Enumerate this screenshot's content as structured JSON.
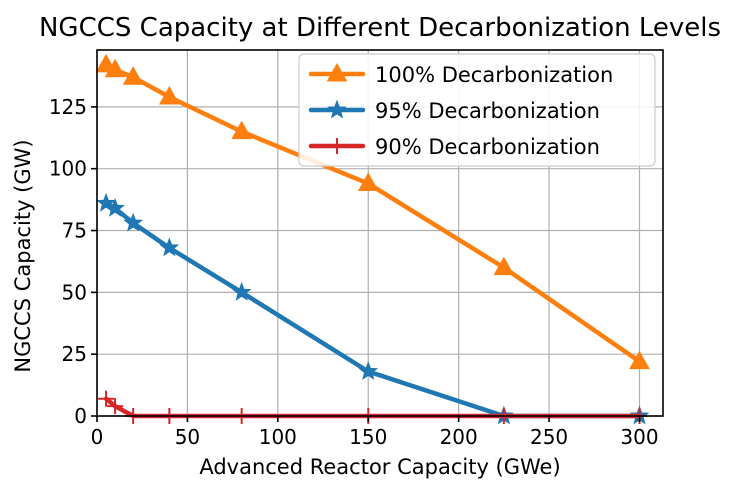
{
  "chart_data": {
    "type": "line",
    "title": "NGCCS Capacity at Different Decarbonization Levels",
    "xlabel": "Advanced Reactor Capacity (GWe)",
    "ylabel": "NGCCS Capacity (GW)",
    "xlim": [
      0,
      313
    ],
    "ylim": [
      0,
      148
    ],
    "xticks": [
      0,
      50,
      100,
      150,
      200,
      250,
      300
    ],
    "yticks": [
      0,
      25,
      50,
      75,
      100,
      125
    ],
    "xtick_labels": [
      "0",
      "50",
      "100",
      "150",
      "200",
      "250",
      "300"
    ],
    "ytick_labels": [
      "0",
      "25",
      "50",
      "75",
      "100",
      "125"
    ],
    "grid": true,
    "legend_position": "top-right",
    "series": [
      {
        "name": "100% Decarbonization",
        "color": "#ff7f0e",
        "marker": "triangle",
        "x": [
          5,
          10,
          20,
          40,
          80,
          150,
          225,
          300
        ],
        "values": [
          142,
          140,
          137,
          129,
          115,
          94,
          60,
          22
        ]
      },
      {
        "name": "95% Decarbonization",
        "color": "#1f77b4",
        "marker": "star",
        "x": [
          5,
          10,
          20,
          40,
          80,
          150,
          225,
          300
        ],
        "values": [
          86,
          84,
          78,
          68,
          50,
          18,
          0,
          0
        ]
      },
      {
        "name": "90% Decarbonization",
        "color": "#d62728",
        "marker": "plus",
        "x": [
          5,
          10,
          20,
          40,
          80,
          150,
          225,
          300
        ],
        "values": [
          7,
          4,
          0,
          0,
          0,
          0,
          0,
          0
        ]
      }
    ]
  }
}
